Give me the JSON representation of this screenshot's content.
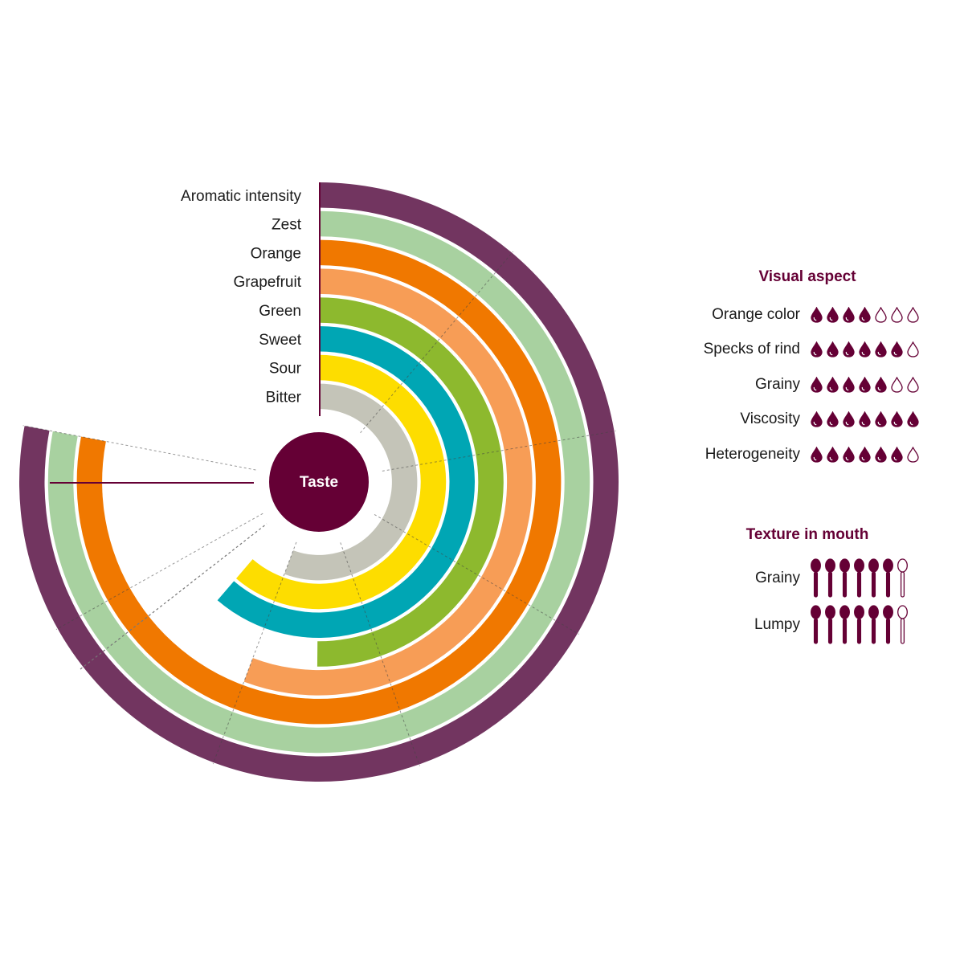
{
  "colors": {
    "brand": "#650035",
    "label_line": "#650035"
  },
  "chart_data": {
    "type": "radial-bar",
    "center_label": "Taste",
    "max": 7,
    "series": [
      {
        "name": "Aromatic intensity",
        "value": 7,
        "color": "#723560"
      },
      {
        "name": "Zest",
        "value": 7,
        "color": "#a8d1a0"
      },
      {
        "name": "Orange",
        "value": 7,
        "color": "#f07800"
      },
      {
        "name": "Grapefruit",
        "value": 5,
        "color": "#f79d56"
      },
      {
        "name": "Green",
        "value": 4.5,
        "color": "#8db92e"
      },
      {
        "name": "Sweet",
        "value": 5.5,
        "color": "#00a6b4"
      },
      {
        "name": "Sour",
        "value": 5.5,
        "color": "#fddd00"
      },
      {
        "name": "Bitter",
        "value": 5,
        "color": "#c4c4b8"
      }
    ]
  },
  "visual_aspect": {
    "title": "Visual aspect",
    "icon": "drop-icon",
    "max": 7,
    "items": [
      {
        "label": "Orange color",
        "value": 4
      },
      {
        "label": "Specks of rind",
        "value": 6
      },
      {
        "label": "Grainy",
        "value": 5
      },
      {
        "label": "Viscosity",
        "value": 7
      },
      {
        "label": "Heterogeneity",
        "value": 6
      }
    ]
  },
  "texture_in_mouth": {
    "title": "Texture in mouth",
    "icon": "spoon-icon",
    "max": 7,
    "items": [
      {
        "label": "Grainy",
        "value": 6
      },
      {
        "label": "Lumpy",
        "value": 6
      }
    ]
  }
}
